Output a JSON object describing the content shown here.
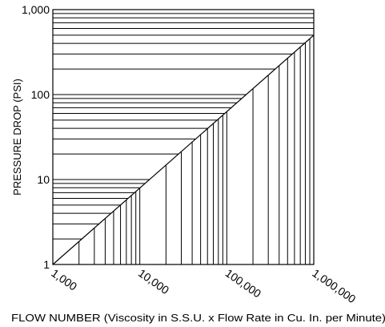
{
  "chart_data": {
    "type": "line",
    "title": "",
    "xlabel": "FLOW NUMBER (Viscosity in S.S.U. x Flow Rate in Cu. In. per Minute)",
    "ylabel": "PRESSURE DROP (PSI)",
    "x_scale": "log",
    "y_scale": "log",
    "xlim": [
      1000,
      1000000
    ],
    "ylim": [
      1,
      1000
    ],
    "x_ticks": [
      1000,
      10000,
      100000,
      1000000
    ],
    "x_tick_labels": [
      "1,000",
      "10,000",
      "100,000",
      "1,000,000"
    ],
    "y_ticks": [
      1,
      10,
      100,
      1000
    ],
    "y_tick_labels": [
      "1",
      "10",
      "100",
      "1,000"
    ],
    "grid": true,
    "series": [
      {
        "x": [
          1000,
          1000000
        ],
        "y": [
          1,
          500
        ]
      }
    ],
    "colors": {
      "line": "#000000",
      "grid": "#000000",
      "background": "#ffffff"
    }
  }
}
